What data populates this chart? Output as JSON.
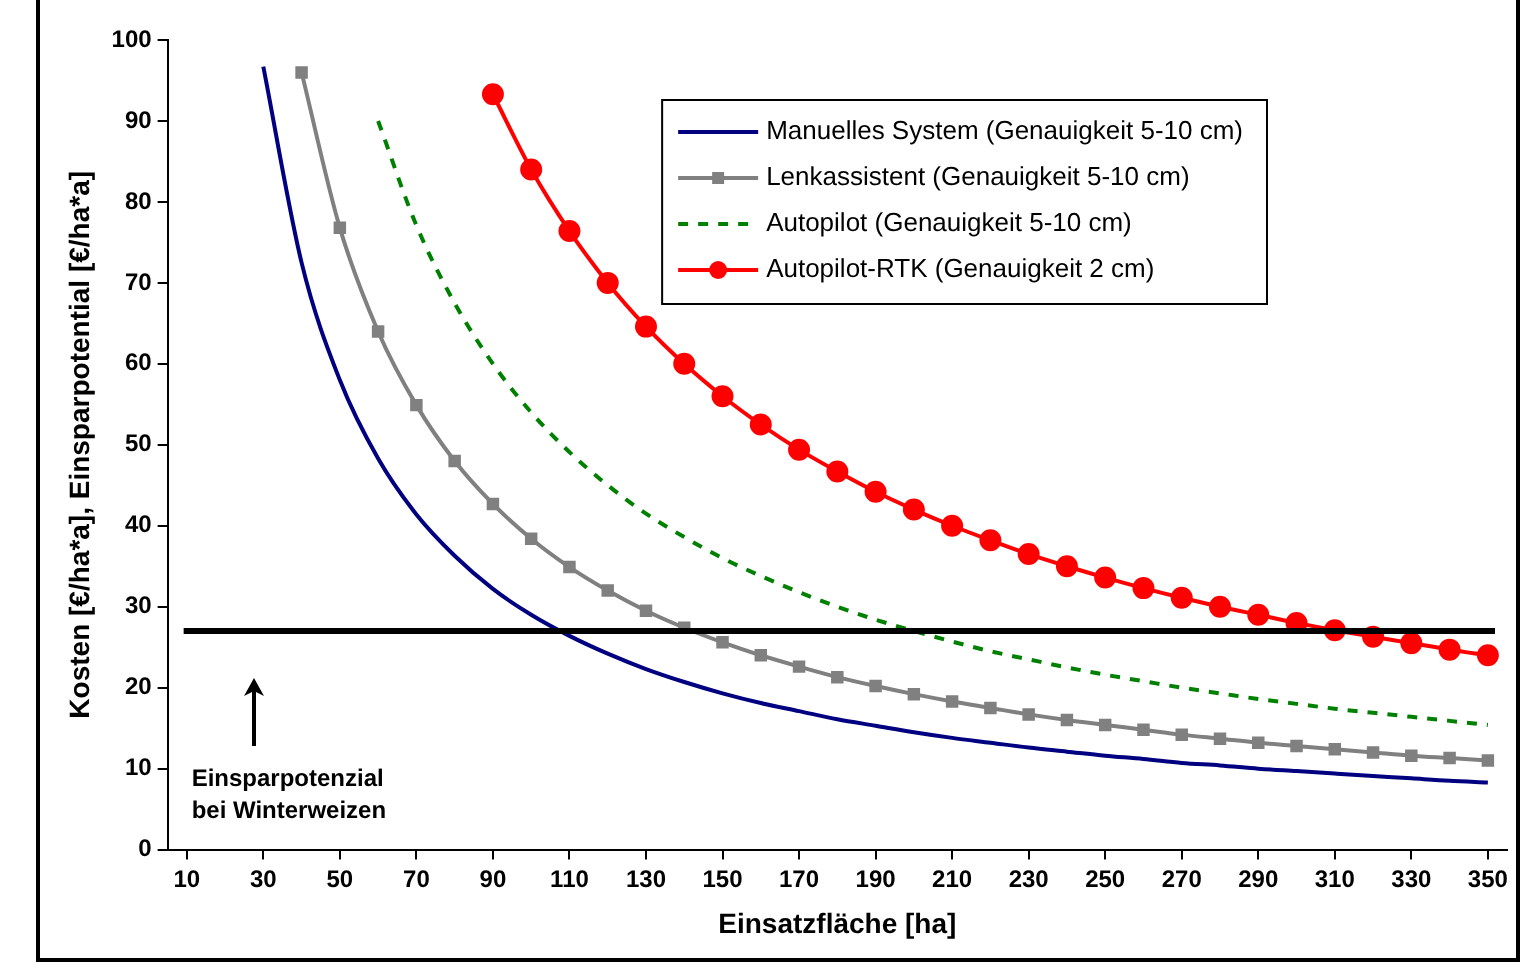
{
  "chart_data": {
    "type": "line",
    "xlabel": "Einsatzfläche [ha]",
    "ylabel": "Kosten [€/ha*a], Einsparpotential [€/ha*a]",
    "x": [
      30,
      40,
      50,
      60,
      70,
      80,
      90,
      100,
      110,
      120,
      130,
      140,
      150,
      160,
      170,
      180,
      190,
      200,
      210,
      220,
      230,
      240,
      250,
      260,
      270,
      280,
      290,
      300,
      310,
      320,
      330,
      340,
      350
    ],
    "xlim": [
      5,
      355
    ],
    "xticks": [
      10,
      30,
      50,
      70,
      90,
      110,
      130,
      150,
      170,
      190,
      210,
      230,
      250,
      270,
      290,
      310,
      330,
      350
    ],
    "ylim": [
      0,
      100
    ],
    "yticks": [
      0,
      10,
      20,
      30,
      40,
      50,
      60,
      70,
      80,
      90,
      100
    ],
    "grid": false,
    "legend": "top right",
    "series": [
      {
        "name": "Manuelles System (Genauigkeit 5-10 cm)",
        "color": "#000080",
        "marker": "none",
        "line_style": "solid",
        "values": [
          96.7,
          72.5,
          58,
          48.3,
          41.4,
          36.3,
          32.2,
          29,
          26.4,
          24.2,
          22.3,
          20.7,
          19.3,
          18.1,
          17.1,
          16.1,
          15.3,
          14.5,
          13.8,
          13.2,
          12.6,
          12.1,
          11.6,
          11.2,
          10.7,
          10.4,
          10,
          9.7,
          9.4,
          9.1,
          8.8,
          8.5,
          8.3
        ]
      },
      {
        "name": "Lenkassistent (Genauigkeit 5-10 cm)",
        "color": "#808080",
        "marker": "square",
        "line_style": "solid",
        "values": [
          null,
          96,
          76.8,
          64,
          54.9,
          48,
          42.7,
          38.4,
          34.9,
          32,
          29.5,
          27.4,
          25.6,
          24,
          22.6,
          21.3,
          20.2,
          19.2,
          18.3,
          17.5,
          16.7,
          16,
          15.4,
          14.8,
          14.2,
          13.7,
          13.2,
          12.8,
          12.4,
          12,
          11.6,
          11.3,
          11
        ]
      },
      {
        "name": "Autopilot (Genauigkeit 5-10 cm)",
        "color": "#008000",
        "marker": "none",
        "line_style": "dashed",
        "values": [
          null,
          null,
          null,
          90,
          77.1,
          67.5,
          60,
          54,
          49.1,
          45,
          41.5,
          38.6,
          36,
          33.8,
          31.8,
          30,
          28.4,
          27,
          25.7,
          24.5,
          23.5,
          22.5,
          21.6,
          20.8,
          20,
          19.3,
          18.6,
          18,
          17.4,
          16.9,
          16.4,
          15.9,
          15.4
        ]
      },
      {
        "name": "Autopilot-RTK (Genauigkeit 2 cm)",
        "color": "#ff0000",
        "marker": "circle",
        "line_style": "solid",
        "values": [
          null,
          null,
          null,
          null,
          null,
          null,
          93.3,
          84,
          76.4,
          70,
          64.6,
          60,
          56,
          52.5,
          49.4,
          46.7,
          44.2,
          42,
          40,
          38.2,
          36.5,
          35,
          33.6,
          32.3,
          31.1,
          30,
          29,
          28,
          27.1,
          26.3,
          25.5,
          24.7,
          24
        ]
      }
    ],
    "ref_lines": [
      {
        "axis": "y",
        "value": 27,
        "color": "#000000",
        "line_style": "solid",
        "label": null
      }
    ],
    "annotations": [
      "Einsparpotenzial\nbei Winterweizen"
    ]
  }
}
